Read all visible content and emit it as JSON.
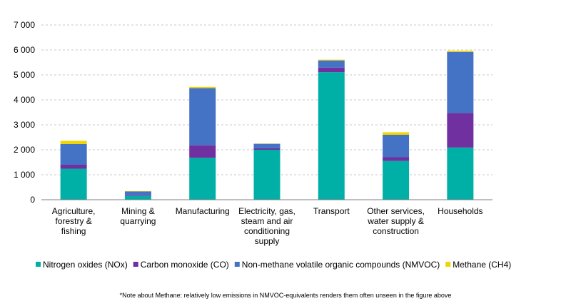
{
  "chart_data": {
    "type": "bar",
    "stacked": true,
    "categories": [
      [
        "Agriculture,",
        "forestry &",
        "fishing"
      ],
      [
        "Mining &",
        "quarrying"
      ],
      [
        "Manufacturing"
      ],
      [
        "Electricity, gas,",
        "steam and air",
        "conditioning",
        "supply"
      ],
      [
        "Transport"
      ],
      [
        "Other services,",
        "water supply &",
        "construction"
      ],
      [
        "Households"
      ]
    ],
    "series": [
      {
        "name": "Nitrogen oxides (NOx)",
        "color": "#00b0a6",
        "values": [
          1240,
          150,
          1680,
          2000,
          5110,
          1550,
          2090
        ]
      },
      {
        "name": "Carbon monoxide (CO)",
        "color": "#7030a0",
        "values": [
          160,
          30,
          500,
          60,
          180,
          150,
          1380
        ]
      },
      {
        "name": "Non-methane volatile organic compounds (NMVOC)",
        "color": "#4472c4",
        "values": [
          830,
          150,
          2290,
          180,
          290,
          900,
          2450
        ]
      },
      {
        "name": "Methane (CH4)",
        "color": "#f2d400",
        "values": [
          130,
          15,
          50,
          10,
          30,
          100,
          50
        ]
      }
    ],
    "y_ticks": [
      "0",
      "1 000",
      "2 000",
      "3 000",
      "4 000",
      "5 000",
      "6 000",
      "7 000"
    ],
    "ylim": [
      0,
      7000
    ],
    "grid": true,
    "legend_position": "bottom",
    "note": "*Note about Methane: relatively low emissions in NMVOC-equivalents renders them often unseen in the figure above"
  }
}
